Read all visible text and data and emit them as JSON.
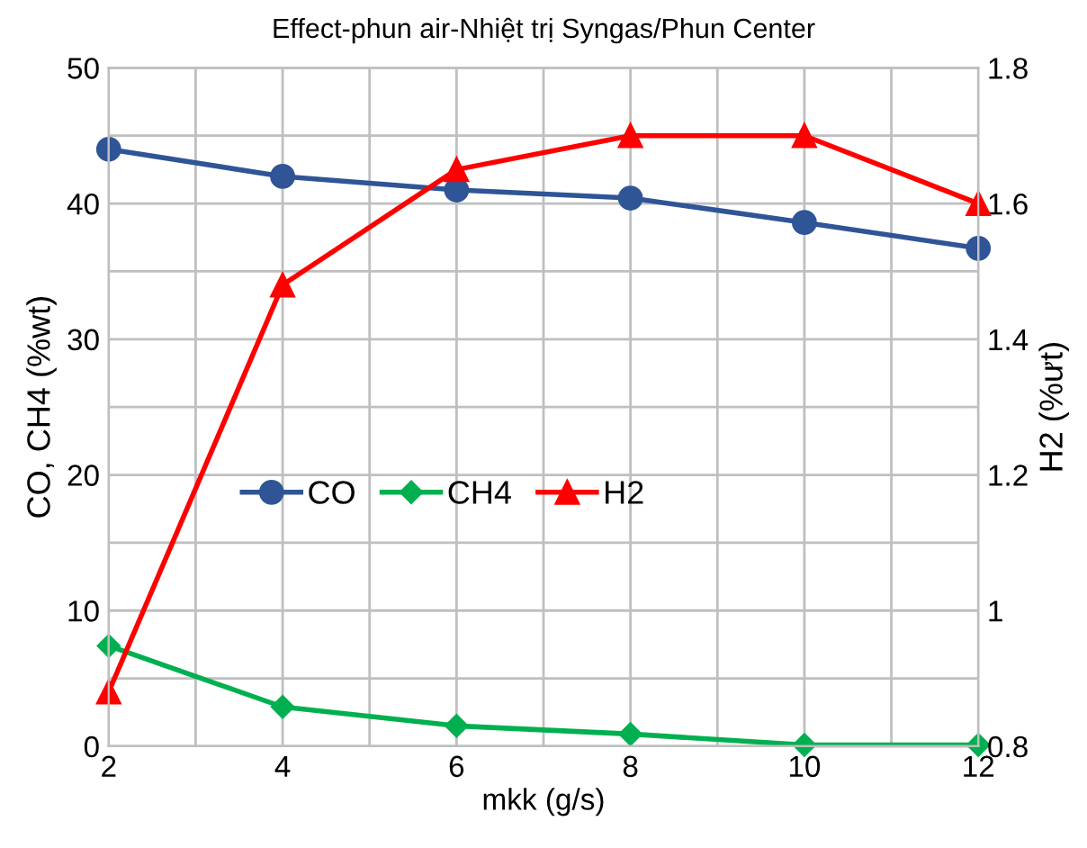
{
  "chart_data": {
    "type": "line",
    "title": "Effect-phun air-Nhiệt trị Syngas/Phun Center",
    "xlabel": "mkk (g/s)",
    "ylabel": "CO, CH4 (%wt)",
    "y2label": "H2 (%ưt)",
    "x": [
      2,
      4,
      6,
      8,
      10,
      12
    ],
    "xlim": [
      2,
      12
    ],
    "xticks": [
      2,
      {
        "value": 3,
        "label": null
      },
      4,
      {
        "value": 5,
        "label": null
      },
      6,
      {
        "value": 7,
        "label": null
      },
      8,
      {
        "value": 9,
        "label": null
      },
      10,
      {
        "value": 11,
        "label": null
      },
      12
    ],
    "ylim": [
      0,
      50
    ],
    "yticks": [
      0,
      {
        "value": 5,
        "label": null
      },
      10,
      {
        "value": 15,
        "label": null
      },
      20,
      {
        "value": 25,
        "label": null
      },
      30,
      {
        "value": 35,
        "label": null
      },
      40,
      {
        "value": 45,
        "label": null
      },
      50
    ],
    "y2lim": [
      0.8,
      1.8
    ],
    "y2ticks": [
      0.8,
      1,
      1.2,
      1.4,
      1.6,
      1.8
    ],
    "grid": true,
    "legend": "left",
    "line_style": "solid",
    "series": [
      {
        "name": "CO",
        "color": "#2f5597",
        "marker": "circle",
        "values": [
          44.0,
          42.0,
          41.0,
          40.4,
          38.6,
          36.7
        ]
      },
      {
        "name": "CH4",
        "color": "#00b050",
        "marker": "diamond",
        "values": [
          7.4,
          2.9,
          1.5,
          0.9,
          0.1,
          0.1
        ]
      },
      {
        "name": "H2",
        "color": "#ff0000",
        "marker": "triangle",
        "axis": "y2",
        "values": [
          0.88,
          1.48,
          1.65,
          1.7,
          1.7,
          1.6
        ]
      }
    ]
  }
}
